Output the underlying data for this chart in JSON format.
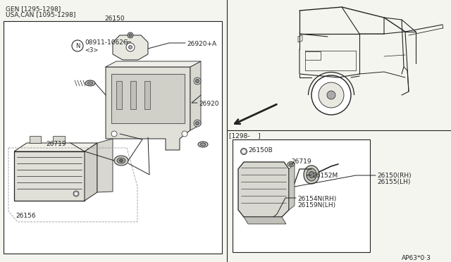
{
  "bg_color": "#f5f5f0",
  "line_color": "#222222",
  "top_left_labels": [
    "GEN [1295-1298]",
    "USA,CAN [1095-1298]"
  ],
  "left_parts": {
    "26150": "26150",
    "08911": "08911-1062G",
    "08911_sub": "<3>",
    "26920A": "26920+A",
    "26920": "26920",
    "26719": "26719",
    "26156": "26156"
  },
  "right_parts": {
    "date": "[1298-    ]",
    "26150B": "26150B",
    "26719": "26719",
    "26152M": "26152M",
    "26150RH": "26150(RH)",
    "26155LH": "26155(LH)",
    "26154N": "26154N(RH)",
    "26159N": "26159N(LH)"
  },
  "ref": "AP63*0·3"
}
